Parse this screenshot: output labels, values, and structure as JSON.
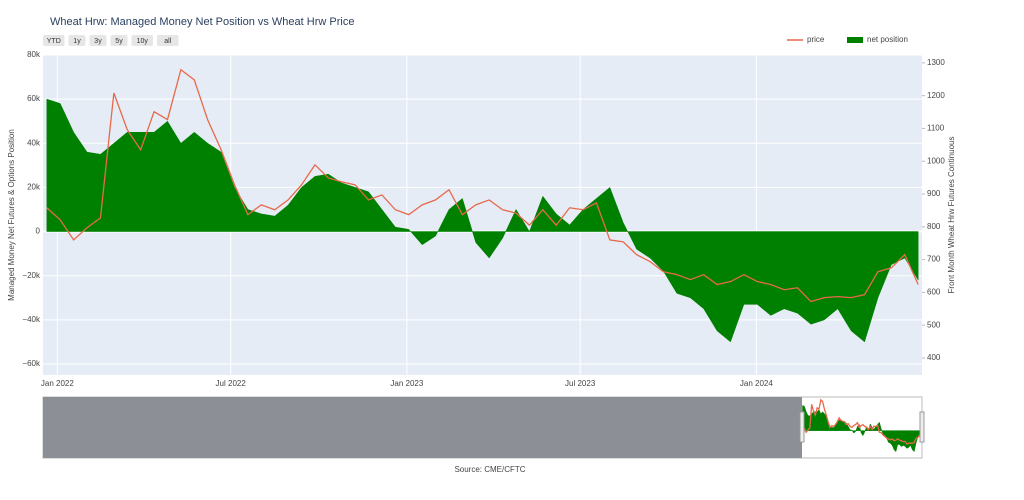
{
  "chart_data": {
    "type": "area-line",
    "title": "Wheat Hrw: Managed Money Net Position vs Wheat Hrw Price",
    "buttons": [
      "YTD",
      "1y",
      "3y",
      "5y",
      "10y",
      "all"
    ],
    "y_label": "Managed Money Net Futures & Options Position",
    "y2_label": "Front Month Wheat Hrw Futures Continuous",
    "source": "Source: CME/CFTC",
    "legend": "top-right",
    "grid": true,
    "x": [
      "2021-12-21",
      "2022-01-04",
      "2022-01-18",
      "2022-02-01",
      "2022-02-15",
      "2022-03-01",
      "2022-03-15",
      "2022-03-29",
      "2022-04-12",
      "2022-04-26",
      "2022-05-10",
      "2022-05-24",
      "2022-06-07",
      "2022-06-21",
      "2022-07-05",
      "2022-07-19",
      "2022-08-02",
      "2022-08-16",
      "2022-08-30",
      "2022-09-13",
      "2022-09-27",
      "2022-10-11",
      "2022-10-25",
      "2022-11-08",
      "2022-11-22",
      "2022-12-06",
      "2022-12-20",
      "2023-01-03",
      "2023-01-17",
      "2023-01-31",
      "2023-02-14",
      "2023-02-28",
      "2023-03-14",
      "2023-03-28",
      "2023-04-11",
      "2023-04-25",
      "2023-05-09",
      "2023-05-23",
      "2023-06-06",
      "2023-06-20",
      "2023-07-04",
      "2023-07-18",
      "2023-08-01",
      "2023-08-15",
      "2023-08-29",
      "2023-09-12",
      "2023-09-26",
      "2023-10-10",
      "2023-10-24",
      "2023-11-07",
      "2023-11-21",
      "2023-12-05",
      "2023-12-19",
      "2024-01-02",
      "2024-01-16",
      "2024-01-30",
      "2024-02-13",
      "2024-02-27",
      "2024-03-12",
      "2024-03-26",
      "2024-04-09",
      "2024-04-23",
      "2024-05-07",
      "2024-05-21",
      "2024-06-04",
      "2024-06-18"
    ],
    "series": [
      {
        "name": "price",
        "color": "#e8694a",
        "axis": "y2",
        "values": [
          858,
          821,
          760,
          797,
          827,
          1208,
          1096,
          1035,
          1151,
          1127,
          1279,
          1248,
          1126,
          1035,
          928,
          837,
          867,
          852,
          882,
          928,
          989,
          949,
          937,
          928,
          882,
          897,
          852,
          837,
          867,
          882,
          913,
          837,
          867,
          882,
          852,
          842,
          805,
          852,
          805,
          858,
          852,
          873,
          760,
          754,
          715,
          694,
          663,
          654,
          639,
          654,
          624,
          633,
          654,
          633,
          624,
          608,
          614,
          572,
          584,
          587,
          584,
          593,
          663,
          675,
          715,
          624
        ]
      },
      {
        "name": "net position",
        "color": "#008000",
        "values": [
          60000,
          58000,
          45000,
          36000,
          35000,
          40000,
          45000,
          45000,
          45000,
          50000,
          40000,
          45000,
          40000,
          36000,
          20000,
          10000,
          8000,
          7000,
          12000,
          20000,
          25000,
          26000,
          22000,
          20000,
          18000,
          10000,
          2000,
          1000,
          -6000,
          -2000,
          10000,
          15000,
          -5000,
          -12000,
          -3000,
          10000,
          0,
          16000,
          8000,
          3000,
          10000,
          15000,
          20000,
          4000,
          -8000,
          -12000,
          -18000,
          -28000,
          -30000,
          -35000,
          -45000,
          -50000,
          -33000,
          -33000,
          -38000,
          -35000,
          -37000,
          -42000,
          -40000,
          -35000,
          -45000,
          -50000,
          -30000,
          -15000,
          -12000,
          -22000
        ]
      }
    ],
    "xlim": [
      "2021-12-17",
      "2024-06-22"
    ],
    "xticks": [
      {
        "value": "2022-01-01",
        "label": "Jan 2022"
      },
      {
        "value": "2022-07-01",
        "label": "Jul 2022"
      },
      {
        "value": "2023-01-01",
        "label": "Jan 2023"
      },
      {
        "value": "2023-07-01",
        "label": "Jul 2023"
      },
      {
        "value": "2024-01-01",
        "label": "Jan 2024"
      }
    ],
    "ylim": [
      -65000,
      80000
    ],
    "yticks": [
      {
        "value": -60000,
        "label": "−60k"
      },
      {
        "value": -40000,
        "label": "−40k"
      },
      {
        "value": -20000,
        "label": "−20k"
      },
      0,
      {
        "value": 20000,
        "label": "20k"
      },
      {
        "value": 40000,
        "label": "40k"
      },
      {
        "value": 60000,
        "label": "60k"
      },
      {
        "value": 80000,
        "label": "80k"
      }
    ],
    "y2lim": [
      348,
      1324
    ],
    "y2ticks": [
      400,
      500,
      600,
      700,
      800,
      900,
      1000,
      1100,
      1200,
      1300
    ]
  }
}
